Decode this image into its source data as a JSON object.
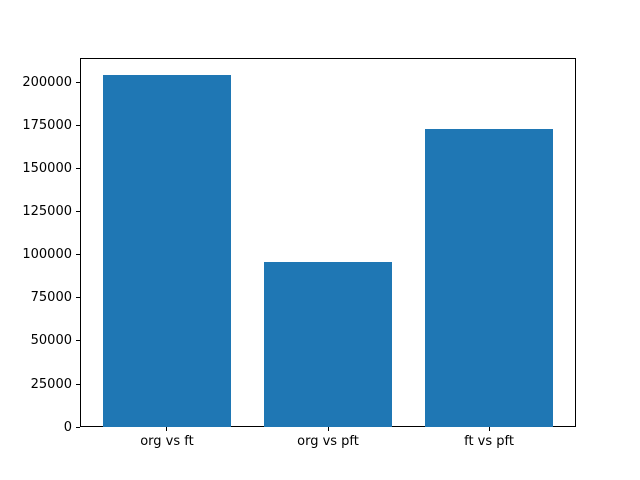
{
  "figure": {
    "background_color": "#ffffff",
    "spine_color": "#000000",
    "tick_label_color": "#000000"
  },
  "chart_data": {
    "type": "bar",
    "title": "",
    "xlabel": "",
    "ylabel": "",
    "categories": [
      "org vs ft",
      "org vs pft",
      "ft vs pft"
    ],
    "values": [
      204000,
      95500,
      173000
    ],
    "bar_color": "#1f77b4",
    "yticks": [
      0,
      25000,
      50000,
      75000,
      100000,
      125000,
      150000,
      175000,
      200000
    ],
    "ytick_labels": [
      "0",
      "25000",
      "50000",
      "75000",
      "100000",
      "125000",
      "150000",
      "175000",
      "200000"
    ],
    "ylim": [
      0,
      214200
    ],
    "grid": false,
    "legend": false,
    "bar_width_fraction": 0.8
  }
}
